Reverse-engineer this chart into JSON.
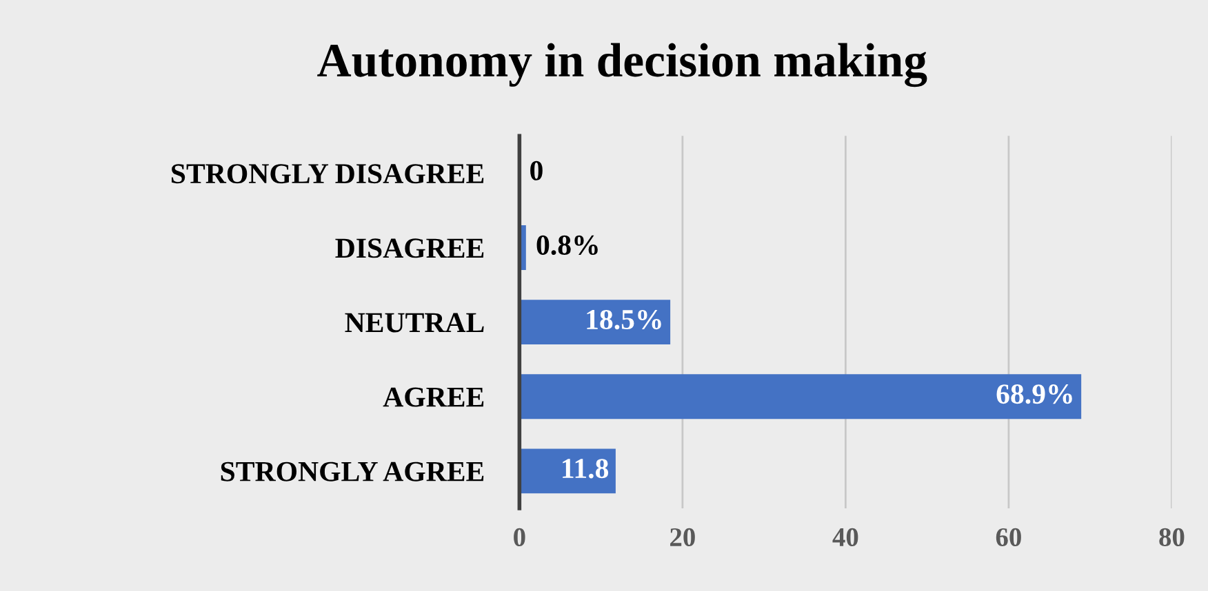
{
  "chart_data": {
    "type": "bar",
    "orientation": "horizontal",
    "title": "Autonomy in decision making",
    "categories": [
      "STRONGLY DISAGREE",
      "DISAGREE",
      "NEUTRAL",
      "AGREE",
      "STRONGLY AGREE"
    ],
    "values": [
      0,
      0.8,
      18.5,
      68.9,
      11.8
    ],
    "value_labels": [
      "0",
      "0.8%",
      "18.5%",
      "68.9%",
      "11.8"
    ],
    "color": "#4472c4",
    "xlim": [
      0,
      80
    ],
    "xticks": [
      0,
      20,
      40,
      60,
      80
    ],
    "grid": "x"
  }
}
